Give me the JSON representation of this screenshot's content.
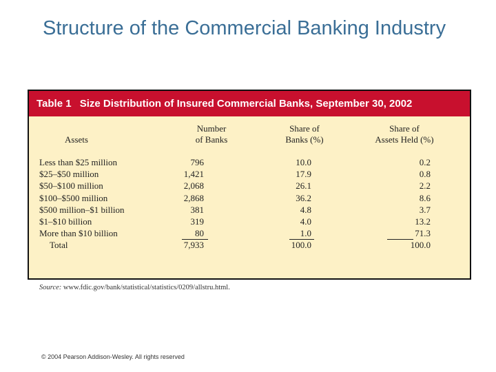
{
  "slide": {
    "title": "Structure of the Commercial Banking Industry",
    "footer": "© 2004 Pearson Addison-Wesley. All rights reserved"
  },
  "table": {
    "label": "Table 1",
    "title": "Size Distribution of Insured Commercial Banks, September 30, 2002",
    "colors": {
      "header_bg": "#c8102e",
      "body_bg": "#fdf1c6",
      "title_text": "#3a6e96"
    },
    "columns": {
      "assets": "Assets",
      "number_of_banks": [
        "Number",
        "of Banks"
      ],
      "share_of_banks": [
        "Share of",
        "Banks (%)"
      ],
      "share_of_assets": [
        "Share of",
        "Assets Held (%)"
      ]
    },
    "rows": [
      {
        "assets": "Less than $25 million",
        "number": "796",
        "share_banks": "10.0",
        "share_assets": "0.2"
      },
      {
        "assets": "$25–$50 million",
        "number": "1,421",
        "share_banks": "17.9",
        "share_assets": "0.8"
      },
      {
        "assets": "$50–$100 million",
        "number": "2,068",
        "share_banks": "26.1",
        "share_assets": "2.2"
      },
      {
        "assets": "$100–$500 million",
        "number": "2,868",
        "share_banks": "36.2",
        "share_assets": "8.6"
      },
      {
        "assets": "$500 million–$1 billion",
        "number": "381",
        "share_banks": "4.8",
        "share_assets": "3.7"
      },
      {
        "assets": "$1–$10 billion",
        "number": "319",
        "share_banks": "4.0",
        "share_assets": "13.2"
      },
      {
        "assets": "More than $10 billion",
        "number": "80",
        "share_banks": "1.0",
        "share_assets": "71.3"
      }
    ],
    "total": {
      "assets": "Total",
      "number": "7,933",
      "share_banks": "100.0",
      "share_assets": "100.0"
    },
    "source_label": "Source:",
    "source_url": "www.fdic.gov/bank/statistical/statistics/0209/allstru.html."
  }
}
